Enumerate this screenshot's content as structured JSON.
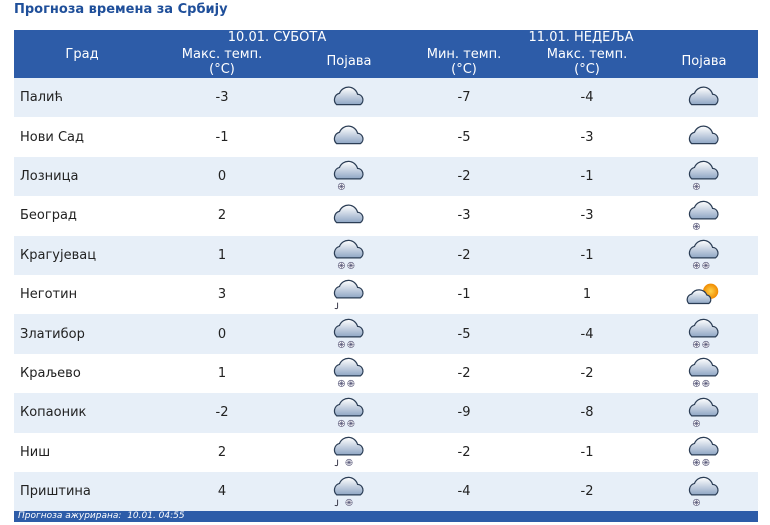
{
  "header": {
    "title": "Прогноза времена за Србију"
  },
  "table": {
    "columns": {
      "city": "Град",
      "day1": {
        "date": "10.01. СУБОТА",
        "max": "Макс. темп. (°C)",
        "phenomenon": "Појава"
      },
      "day2": {
        "date": "11.01. НЕДЕЉА",
        "min": "Мин. темп. (°C)",
        "max": "Макс. темп. (°C)",
        "phenomenon": "Појава"
      }
    },
    "rows": [
      [
        "Палић",
        -3,
        -7,
        -4
      ],
      [
        "Нови Сад",
        -1,
        -5,
        -3
      ],
      [
        "Лозница",
        0,
        -2,
        -1
      ],
      [
        "Београд",
        2,
        -3,
        -3
      ],
      [
        "Крагујевац",
        1,
        -2,
        -1
      ],
      [
        "Неготин",
        3,
        -1,
        1
      ],
      [
        "Златибор",
        0,
        -5,
        -4
      ],
      [
        "Краљево",
        1,
        -2,
        -2
      ],
      [
        "Копаоник",
        -2,
        -9,
        -8
      ],
      [
        "Ниш",
        2,
        -2,
        -1
      ],
      [
        "Приштина",
        4,
        -4,
        -2
      ]
    ]
  },
  "footer": {
    "label": "Прогноза ажурирана:",
    "value": "10.01. 04:55"
  }
}
